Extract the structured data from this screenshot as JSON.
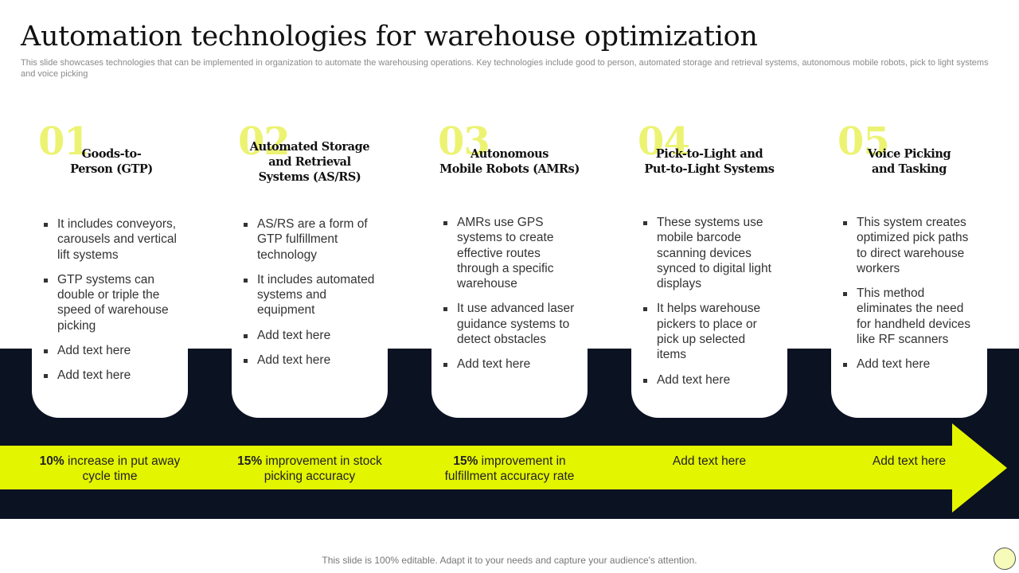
{
  "title": "Automation technologies for warehouse optimization",
  "subtitle": "This slide showcases technologies that can be implemented in organization to automate the warehousing operations. Key technologies include good to person, automated storage and retrieval systems, autonomous mobile robots, pick to light systems and voice picking",
  "colors": {
    "accent": "#e4f500",
    "dark_band": "#0b1222",
    "number": "#e9f25a"
  },
  "columns": [
    {
      "number": "01",
      "heading": [
        "Goods-to-",
        "Person (GTP)"
      ],
      "bullets": [
        "It includes conveyors, carousels and vertical lift systems",
        "GTP systems can double or triple the speed of warehouse picking",
        "Add text here",
        "Add text here"
      ],
      "metric_strong": "10%",
      "metric_rest": " increase in put away cycle time"
    },
    {
      "number": "02",
      "heading": [
        "Automated Storage",
        "and Retrieval",
        "Systems (AS/RS)"
      ],
      "bullets": [
        "AS/RS are a form of GTP fulfillment technology",
        "It includes automated systems and equipment",
        "Add text here",
        "Add text here"
      ],
      "metric_strong": "15%",
      "metric_rest": " improvement in stock picking accuracy"
    },
    {
      "number": "03",
      "heading": [
        "Autonomous",
        "Mobile Robots (AMRs)"
      ],
      "bullets": [
        "AMRs use GPS systems to create effective routes through a specific warehouse",
        "It use advanced laser guidance systems to detect obstacles",
        "Add text here"
      ],
      "metric_strong": "15%",
      "metric_rest": " improvement in fulfillment accuracy rate"
    },
    {
      "number": "04",
      "heading": [
        "Pick-to-Light and",
        "Put-to-Light Systems"
      ],
      "bullets": [
        "These systems use mobile barcode scanning devices synced to digital light displays",
        "It helps warehouse pickers to place or pick up selected items",
        "Add text here"
      ],
      "metric_strong": "",
      "metric_rest": "Add text here"
    },
    {
      "number": "05",
      "heading": [
        "Voice Picking",
        "and Tasking"
      ],
      "bullets": [
        "This system creates optimized pick paths to direct warehouse workers",
        "This method eliminates the need for handheld devices like RF scanners",
        "Add text here"
      ],
      "metric_strong": "",
      "metric_rest": "Add text here"
    }
  ],
  "footer": "This slide is 100% editable. Adapt it to your needs and capture your audience's attention."
}
